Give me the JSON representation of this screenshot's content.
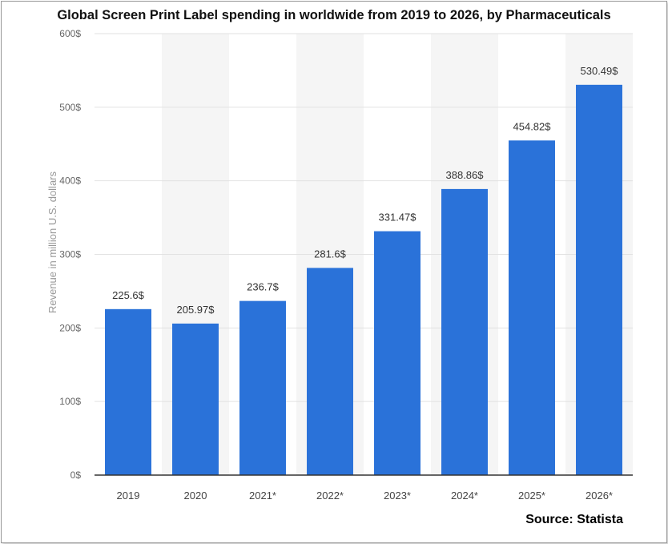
{
  "chart_data": {
    "type": "bar",
    "title": "Global Screen Print Label spending in worldwide from 2019 to 2026, by Pharmaceuticals",
    "xlabel": "",
    "ylabel": "Revenue in million U.S. dollars",
    "categories": [
      "2019",
      "2020",
      "2021*",
      "2022*",
      "2023*",
      "2024*",
      "2025*",
      "2026*"
    ],
    "values": [
      225.6,
      205.97,
      236.7,
      281.6,
      331.47,
      388.86,
      454.82,
      530.49
    ],
    "data_labels": [
      "225.6$",
      "205.97$",
      "236.7$",
      "281.6$",
      "331.47$",
      "388.86$",
      "454.82$",
      "530.49$"
    ],
    "yticks": [
      0,
      100,
      200,
      300,
      400,
      500,
      600
    ],
    "ytick_labels": [
      "0$",
      "100$",
      "200$",
      "300$",
      "400$",
      "500$",
      "600$"
    ],
    "ylim": [
      0,
      600
    ],
    "grid": "horizontal",
    "bar_color": "#2a72d9",
    "source": "Source: Statista"
  }
}
